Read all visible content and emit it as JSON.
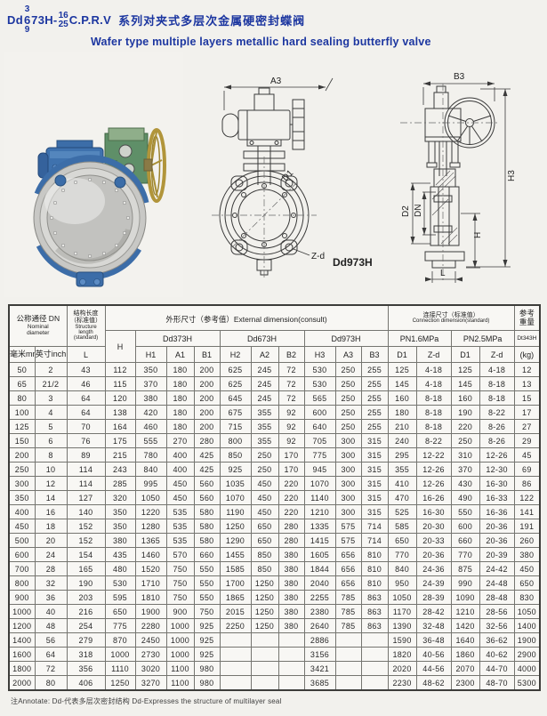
{
  "title": {
    "prefix": "Dd",
    "variant_top": "3",
    "variant_mid": "6",
    "variant_bottom": "9",
    "body": "73H-",
    "pn_top": "16",
    "pn_bottom": "25",
    "tail": "C.P.R.V",
    "series_cn": "系列对夹式多层次金属硬密封蝶阀",
    "series_en": "Wafer type multiple layers metallic hard sealing butterfly valve"
  },
  "colors": {
    "title_blue": "#1c36a0",
    "valve_blue": "#3c6da8",
    "gearbox_green": "#5f8f68",
    "handwheel_brass": "#b1953a"
  },
  "drawings": {
    "front": {
      "a3": "A3",
      "d1": "D1",
      "zd": "Z-d",
      "caption": "Dd973H"
    },
    "side": {
      "b3": "B3",
      "h3": "H3",
      "d2": "D2",
      "dn": "DN",
      "h": "H",
      "l": "L"
    }
  },
  "table": {
    "headers": {
      "nominal_cn": "公称通径 DN",
      "nominal_en1": "Nominal",
      "nominal_en2": "diameter",
      "mm": "毫米mm",
      "inch": "英寸inch",
      "structure_cn1": "结构长度",
      "structure_cn2": "（标准值）",
      "structure_en1": "Structure",
      "structure_en2": "length",
      "structure_en3": "(standard)",
      "l": "L",
      "h": "H",
      "external": "外形尺寸（参考值）External dimension(consult)",
      "dd373h": "Dd373H",
      "dd673h": "Dd673H",
      "dd973h": "Dd973H",
      "h1": "H1",
      "a1": "A1",
      "b1": "B1",
      "h2": "H2",
      "a2": "A2",
      "b2": "B2",
      "h3": "H3",
      "a3": "A3",
      "b3": "B3",
      "connection_cn": "连接尺寸（标准值）",
      "connection_en": "Connection dimension(standard)",
      "pn16": "PN1.6MPa",
      "pn25": "PN2.5MPa",
      "d1": "D1",
      "zd": "Z-d",
      "weight_cn1": "参考",
      "weight_cn2": "重量",
      "weight_model": "Dt343H",
      "weight_unit": "(kg)"
    },
    "rows": [
      [
        "50",
        "2",
        "43",
        "112",
        "350",
        "180",
        "200",
        "625",
        "245",
        "72",
        "530",
        "250",
        "255",
        "125",
        "4-18",
        "125",
        "4-18",
        "12"
      ],
      [
        "65",
        "21/2",
        "46",
        "115",
        "370",
        "180",
        "200",
        "625",
        "245",
        "72",
        "530",
        "250",
        "255",
        "145",
        "4-18",
        "145",
        "8-18",
        "13"
      ],
      [
        "80",
        "3",
        "64",
        "120",
        "380",
        "180",
        "200",
        "645",
        "245",
        "72",
        "565",
        "250",
        "255",
        "160",
        "8-18",
        "160",
        "8-18",
        "15"
      ],
      [
        "100",
        "4",
        "64",
        "138",
        "420",
        "180",
        "200",
        "675",
        "355",
        "92",
        "600",
        "250",
        "255",
        "180",
        "8-18",
        "190",
        "8-22",
        "17"
      ],
      [
        "125",
        "5",
        "70",
        "164",
        "460",
        "180",
        "200",
        "715",
        "355",
        "92",
        "640",
        "250",
        "255",
        "210",
        "8-18",
        "220",
        "8-26",
        "27"
      ],
      [
        "150",
        "6",
        "76",
        "175",
        "555",
        "270",
        "280",
        "800",
        "355",
        "92",
        "705",
        "300",
        "315",
        "240",
        "8-22",
        "250",
        "8-26",
        "29"
      ],
      [
        "200",
        "8",
        "89",
        "215",
        "780",
        "400",
        "425",
        "850",
        "250",
        "170",
        "775",
        "300",
        "315",
        "295",
        "12-22",
        "310",
        "12-26",
        "45"
      ],
      [
        "250",
        "10",
        "114",
        "243",
        "840",
        "400",
        "425",
        "925",
        "250",
        "170",
        "945",
        "300",
        "315",
        "355",
        "12-26",
        "370",
        "12-30",
        "69"
      ],
      [
        "300",
        "12",
        "114",
        "285",
        "995",
        "450",
        "560",
        "1035",
        "450",
        "220",
        "1070",
        "300",
        "315",
        "410",
        "12-26",
        "430",
        "16-30",
        "86"
      ],
      [
        "350",
        "14",
        "127",
        "320",
        "1050",
        "450",
        "560",
        "1070",
        "450",
        "220",
        "1140",
        "300",
        "315",
        "470",
        "16-26",
        "490",
        "16-33",
        "122"
      ],
      [
        "400",
        "16",
        "140",
        "350",
        "1220",
        "535",
        "580",
        "1190",
        "450",
        "220",
        "1210",
        "300",
        "315",
        "525",
        "16-30",
        "550",
        "16-36",
        "141"
      ],
      [
        "450",
        "18",
        "152",
        "350",
        "1280",
        "535",
        "580",
        "1250",
        "650",
        "280",
        "1335",
        "575",
        "714",
        "585",
        "20-30",
        "600",
        "20-36",
        "191"
      ],
      [
        "500",
        "20",
        "152",
        "380",
        "1365",
        "535",
        "580",
        "1290",
        "650",
        "280",
        "1415",
        "575",
        "714",
        "650",
        "20-33",
        "660",
        "20-36",
        "260"
      ],
      [
        "600",
        "24",
        "154",
        "435",
        "1460",
        "570",
        "660",
        "1455",
        "850",
        "380",
        "1605",
        "656",
        "810",
        "770",
        "20-36",
        "770",
        "20-39",
        "380"
      ],
      [
        "700",
        "28",
        "165",
        "480",
        "1520",
        "750",
        "550",
        "1585",
        "850",
        "380",
        "1844",
        "656",
        "810",
        "840",
        "24-36",
        "875",
        "24-42",
        "450"
      ],
      [
        "800",
        "32",
        "190",
        "530",
        "1710",
        "750",
        "550",
        "1700",
        "1250",
        "380",
        "2040",
        "656",
        "810",
        "950",
        "24-39",
        "990",
        "24-48",
        "650"
      ],
      [
        "900",
        "36",
        "203",
        "595",
        "1810",
        "750",
        "550",
        "1865",
        "1250",
        "380",
        "2255",
        "785",
        "863",
        "1050",
        "28-39",
        "1090",
        "28-48",
        "830"
      ],
      [
        "1000",
        "40",
        "216",
        "650",
        "1900",
        "900",
        "750",
        "2015",
        "1250",
        "380",
        "2380",
        "785",
        "863",
        "1170",
        "28-42",
        "1210",
        "28-56",
        "1050"
      ],
      [
        "1200",
        "48",
        "254",
        "775",
        "2280",
        "1000",
        "925",
        "2250",
        "1250",
        "380",
        "2640",
        "785",
        "863",
        "1390",
        "32-48",
        "1420",
        "32-56",
        "1400"
      ],
      [
        "1400",
        "56",
        "279",
        "870",
        "2450",
        "1000",
        "925",
        "",
        "",
        "",
        "2886",
        "",
        "",
        "1590",
        "36-48",
        "1640",
        "36-62",
        "1900"
      ],
      [
        "1600",
        "64",
        "318",
        "1000",
        "2730",
        "1000",
        "925",
        "",
        "",
        "",
        "3156",
        "",
        "",
        "1820",
        "40-56",
        "1860",
        "40-62",
        "2900"
      ],
      [
        "1800",
        "72",
        "356",
        "1110",
        "3020",
        "1100",
        "980",
        "",
        "",
        "",
        "3421",
        "",
        "",
        "2020",
        "44-56",
        "2070",
        "44-70",
        "4000"
      ],
      [
        "2000",
        "80",
        "406",
        "1250",
        "3270",
        "1100",
        "980",
        "",
        "",
        "",
        "3685",
        "",
        "",
        "2230",
        "48-62",
        "2300",
        "48-70",
        "5300"
      ]
    ]
  },
  "note": "注Annotate: Dd-代表多层次密封结构 Dd-Expresses the structure of multilayer seal"
}
